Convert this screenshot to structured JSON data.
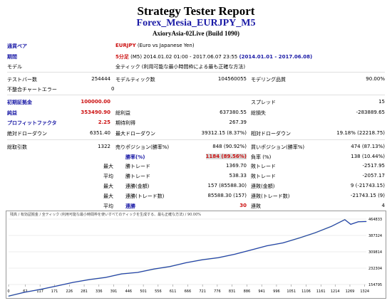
{
  "header": {
    "title": "Strategy Tester Report",
    "subtitle": "Forex_Mesia_EURJPY_M5",
    "account": "AxioryAsia-02Live (Build 1090)"
  },
  "info": {
    "symbol_label": "通貨ペア",
    "symbol_code": "EURJPY",
    "symbol_desc": "(Euro vs Japanese Yen)",
    "period_label": "期間",
    "period_tf": "5分足",
    "period_range": "(M5) 2014.01.02 01:00 - 2017.06.07 23:55",
    "period_set": "(2014.01.01 - 2017.06.08)",
    "model_label": "モデル",
    "model_value": "全ティック (利用可能な最小時間枠による最も正確な方法)"
  },
  "test": {
    "bars_label": "テストバー数",
    "bars_value": "254444",
    "ticks_label": "モデルティック数",
    "ticks_value": "104560055",
    "quality_label": "モデリング品質",
    "quality_value": "90.00%",
    "errors_label": "不整合チャートエラー",
    "errors_value": "0"
  },
  "results": {
    "deposit_label": "初期証拠金",
    "deposit_value": "100000.00",
    "spread_label": "スプレッド",
    "spread_value": "15",
    "net_label": "純益",
    "net_value": "353490.90",
    "gross_profit_label": "総利益",
    "gross_profit_value": "637380.55",
    "gross_loss_label": "総損失",
    "gross_loss_value": "-283889.65",
    "pf_label": "プロフィットファクタ",
    "pf_value": "2.25",
    "payoff_label": "期待利得",
    "payoff_value": "267.39",
    "abs_dd_label": "絶対ドローダウン",
    "abs_dd_value": "6351.40",
    "max_dd_label": "最大ドローダウン",
    "max_dd_value": "39312.15 (8.37%)",
    "rel_dd_label": "相対ドローダウン",
    "rel_dd_value": "19.18% (22218.75)"
  },
  "trades": {
    "total_label": "総取引数",
    "total_value": "1322",
    "short_label": "売りポジション(勝率%)",
    "short_value": "848 (90.92%)",
    "long_label": "買いポジション(勝率%)",
    "long_value": "474 (87.13%)",
    "win_label": "勝率(%)",
    "win_value": "1184 (89.56%)",
    "loss_label": "負率 (%)",
    "loss_value": "138 (10.44%)",
    "max_profit_pre": "最大",
    "max_profit_label": "勝トレード",
    "max_profit_value": "1369.70",
    "max_loss_label": "敗トレード",
    "max_loss_value": "-2517.95",
    "avg_profit_pre": "平均",
    "avg_profit_label": "勝トレード",
    "avg_profit_value": "538.33",
    "avg_loss_label": "敗トレード",
    "avg_loss_value": "-2057.17",
    "cons_wins_pre": "最大",
    "cons_wins_label": "連勝(金額)",
    "cons_wins_value": "157 (85588.30)",
    "cons_losses_label": "連敗(金額)",
    "cons_losses_value": "9 (-21743.15)",
    "cons_profit_pre": "最大",
    "cons_profit_label": "連勝(トレード数)",
    "cons_profit_value": "85588.30 (157)",
    "cons_loss_label": "連敗(トレード数)",
    "cons_loss_value": "-21743.15 (9)",
    "avg_wins_pre": "平均",
    "avg_wins_label": "連勝",
    "avg_wins_value": "30",
    "avg_losses_label": "連敗",
    "avg_losses_value": "4"
  },
  "graph": {
    "caption": "残高 / 有効証拠金 / 全ティック (利用可能な最小時間枠を使いすべてのティックを生成する、最も正確な方法) / 90.00%"
  },
  "chart_data": {
    "type": "line",
    "x_ticks": [
      "0",
      "62",
      "117",
      "171",
      "226",
      "281",
      "336",
      "391",
      "446",
      "501",
      "556",
      "611",
      "666",
      "721",
      "776",
      "831",
      "886",
      "941",
      "996",
      "1051",
      "1106",
      "1161",
      "1214",
      "1269",
      "1324"
    ],
    "y_ticks": [
      "464833",
      "387324",
      "309814",
      "232304",
      "154795"
    ],
    "ylim": [
      154795,
      464833
    ],
    "series": [
      {
        "x": [
          0,
          60,
          120,
          180,
          240,
          300,
          360,
          420,
          480,
          540,
          600,
          660,
          720,
          780,
          840,
          900,
          960,
          1020,
          1080,
          1140,
          1200,
          1250,
          1272,
          1300,
          1330
        ],
        "y": [
          100000,
          118000,
          132000,
          148000,
          165000,
          178000,
          188000,
          205000,
          212000,
          228000,
          240000,
          258000,
          272000,
          282000,
          298000,
          318000,
          338000,
          352000,
          375000,
          400000,
          430000,
          462000,
          440000,
          452000,
          453490
        ]
      }
    ],
    "colors": {
      "balance": "#1f2fc0",
      "equity": "#2f8f2f"
    }
  }
}
